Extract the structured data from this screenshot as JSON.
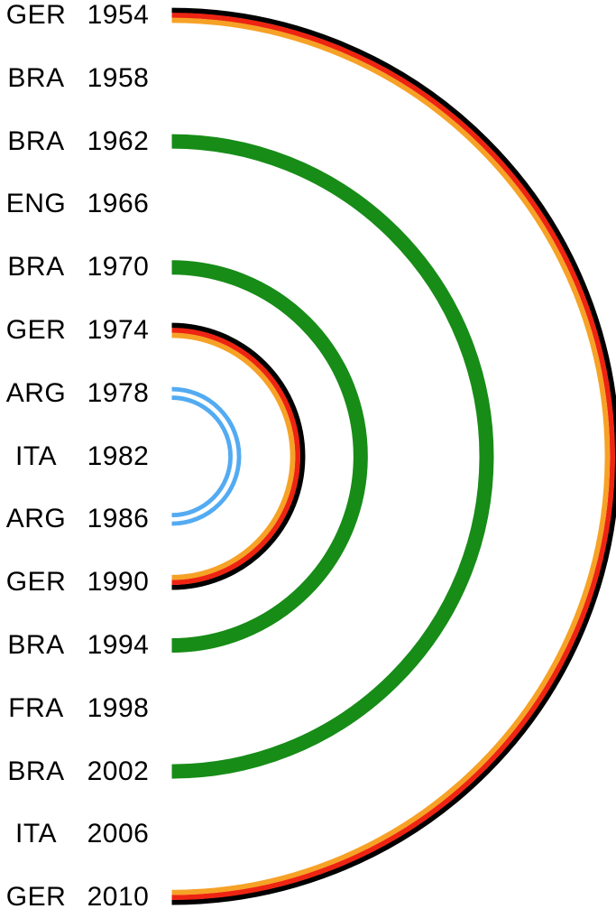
{
  "diagram": {
    "description": "Arc diagram of World Cup winners 1954-2010; arcs in flag colors link years won by the same country, symmetric around 1982",
    "rows": [
      {
        "country": "GER",
        "year": "1954"
      },
      {
        "country": "BRA",
        "year": "1958"
      },
      {
        "country": "BRA",
        "year": "1962"
      },
      {
        "country": "ENG",
        "year": "1966"
      },
      {
        "country": "BRA",
        "year": "1970"
      },
      {
        "country": "GER",
        "year": "1974"
      },
      {
        "country": "ARG",
        "year": "1978"
      },
      {
        "country": "ITA",
        "year": "1982"
      },
      {
        "country": "ARG",
        "year": "1986"
      },
      {
        "country": "GER",
        "year": "1990"
      },
      {
        "country": "BRA",
        "year": "1994"
      },
      {
        "country": "FRA",
        "year": "1998"
      },
      {
        "country": "BRA",
        "year": "2002"
      },
      {
        "country": "ITA",
        "year": "2006"
      },
      {
        "country": "GER",
        "year": "2010"
      }
    ],
    "arcs": [
      {
        "country": "GER",
        "from": "1954",
        "to": "2010",
        "style": "triple",
        "colors": [
          "ger_black",
          "ger_red",
          "ger_gold"
        ]
      },
      {
        "country": "BRA",
        "from": "1962",
        "to": "2002",
        "style": "single",
        "colors": [
          "bra_green"
        ]
      },
      {
        "country": "BRA",
        "from": "1970",
        "to": "1994",
        "style": "single",
        "colors": [
          "bra_green"
        ]
      },
      {
        "country": "GER",
        "from": "1974",
        "to": "1990",
        "style": "triple",
        "colors": [
          "ger_black",
          "ger_red",
          "ger_gold"
        ]
      },
      {
        "country": "ARG",
        "from": "1978",
        "to": "1986",
        "style": "double",
        "colors": [
          "arg_blue",
          "arg_blue"
        ]
      }
    ],
    "palette": {
      "ger_black": "#000000",
      "ger_red": "#ee2413",
      "ger_gold": "#f6a226",
      "bra_green": "#178c17",
      "arg_blue": "#53abf2",
      "text": "#000000",
      "background": "#ffffff"
    }
  }
}
